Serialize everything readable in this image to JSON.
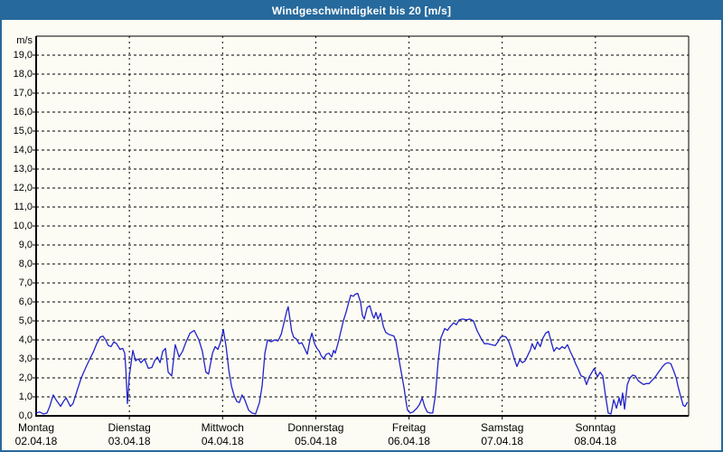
{
  "window": {
    "title": "Windgeschwindigkeit bis 20 [m/s]"
  },
  "colors": {
    "accent_blue": "#26699c",
    "background": "#fcfcf4",
    "series_line": "#2222cc",
    "grid": "#000000",
    "title_text": "#ffffff"
  },
  "chart_data": {
    "type": "line",
    "title": "Windgeschwindigkeit bis 20 [m/s]",
    "ylabel": "m/s",
    "unit_label": "m/s",
    "ylim": [
      0,
      20
    ],
    "y_tick_step": 1,
    "y_tick_labels": [
      "0,0",
      "1,0",
      "2,0",
      "3,0",
      "4,0",
      "5,0",
      "6,0",
      "7,0",
      "8,0",
      "9,0",
      "10,0",
      "11,0",
      "12,0",
      "13,0",
      "14,0",
      "15,0",
      "16,0",
      "17,0",
      "18,0",
      "19,0"
    ],
    "grid": "dashed",
    "x_total_hours": 168,
    "x_days": [
      {
        "name": "Montag",
        "date": "02.04.18"
      },
      {
        "name": "Dienstag",
        "date": "03.04.18"
      },
      {
        "name": "Mittwoch",
        "date": "04.04.18"
      },
      {
        "name": "Donnerstag",
        "date": "05.04.18"
      },
      {
        "name": "Freitag",
        "date": "06.04.18"
      },
      {
        "name": "Samstag",
        "date": "07.04.18"
      },
      {
        "name": "Sonntag",
        "date": "08.04.18"
      }
    ],
    "series": [
      {
        "name": "Windgeschwindigkeit",
        "color": "#2222cc",
        "points": [
          [
            0,
            0.15
          ],
          [
            0.9,
            0.2
          ],
          [
            1.9,
            0.1
          ],
          [
            2.8,
            0.15
          ],
          [
            3.5,
            0.5
          ],
          [
            4.4,
            1.1
          ],
          [
            5.1,
            0.85
          ],
          [
            6.3,
            0.5
          ],
          [
            7,
            0.75
          ],
          [
            7.7,
            0.95
          ],
          [
            8.8,
            0.5
          ],
          [
            9.5,
            0.65
          ],
          [
            10.5,
            1.3
          ],
          [
            11.6,
            2
          ],
          [
            12.8,
            2.55
          ],
          [
            13.7,
            2.95
          ],
          [
            14.7,
            3.35
          ],
          [
            15.6,
            3.8
          ],
          [
            16.5,
            4.15
          ],
          [
            17.2,
            4.2
          ],
          [
            17.9,
            4
          ],
          [
            18.6,
            3.7
          ],
          [
            19.3,
            3.65
          ],
          [
            20,
            3.9
          ],
          [
            20.7,
            3.8
          ],
          [
            21.6,
            3.5
          ],
          [
            22.3,
            3.55
          ],
          [
            22.8,
            3.3
          ],
          [
            23.1,
            2.4
          ],
          [
            23.5,
            0.65
          ],
          [
            24,
            2.1
          ],
          [
            24.9,
            3.45
          ],
          [
            25.6,
            2.9
          ],
          [
            26.3,
            3
          ],
          [
            27,
            2.8
          ],
          [
            27.9,
            3
          ],
          [
            28.9,
            2.5
          ],
          [
            29.8,
            2.55
          ],
          [
            30.5,
            2.9
          ],
          [
            31.2,
            3.1
          ],
          [
            31.9,
            2.8
          ],
          [
            32.6,
            3.4
          ],
          [
            33.3,
            3.55
          ],
          [
            34,
            2.3
          ],
          [
            34.9,
            2.1
          ],
          [
            35.8,
            3.75
          ],
          [
            36.8,
            3.1
          ],
          [
            37.7,
            3.4
          ],
          [
            38.6,
            3.9
          ],
          [
            39.6,
            4.35
          ],
          [
            40.7,
            4.5
          ],
          [
            41.9,
            4
          ],
          [
            42.8,
            3.4
          ],
          [
            43.7,
            2.3
          ],
          [
            44.4,
            2.2
          ],
          [
            45.4,
            3.3
          ],
          [
            46.1,
            3.65
          ],
          [
            46.8,
            3.5
          ],
          [
            47.5,
            3.9
          ],
          [
            48.2,
            4.55
          ],
          [
            48.9,
            3.65
          ],
          [
            49.6,
            2.4
          ],
          [
            50.3,
            1.55
          ],
          [
            51,
            1.05
          ],
          [
            51.7,
            0.75
          ],
          [
            52.3,
            0.7
          ],
          [
            53,
            1.1
          ],
          [
            53.7,
            0.85
          ],
          [
            54.7,
            0.3
          ],
          [
            55.6,
            0.15
          ],
          [
            56.5,
            0.1
          ],
          [
            57.5,
            0.7
          ],
          [
            58.2,
            1.6
          ],
          [
            58.9,
            3.3
          ],
          [
            59.6,
            4
          ],
          [
            60.5,
            3.9
          ],
          [
            61.4,
            4
          ],
          [
            62.3,
            3.95
          ],
          [
            63.1,
            4.3
          ],
          [
            63.8,
            4.9
          ],
          [
            64.5,
            5.5
          ],
          [
            64.9,
            5.75
          ],
          [
            65.4,
            5
          ],
          [
            65.8,
            4.45
          ],
          [
            66.3,
            4.15
          ],
          [
            67,
            4.05
          ],
          [
            67.7,
            3.8
          ],
          [
            68.4,
            3.85
          ],
          [
            69.1,
            3.55
          ],
          [
            69.8,
            3.25
          ],
          [
            70.5,
            4
          ],
          [
            71,
            4.35
          ],
          [
            71.7,
            3.8
          ],
          [
            72.3,
            3.55
          ],
          [
            72.9,
            3.4
          ],
          [
            73.3,
            3.2
          ],
          [
            74,
            3
          ],
          [
            74.7,
            3.25
          ],
          [
            75.4,
            3.3
          ],
          [
            76.1,
            3.1
          ],
          [
            76.6,
            3.45
          ],
          [
            77,
            3.3
          ],
          [
            77.7,
            3.8
          ],
          [
            78.4,
            4.4
          ],
          [
            79.1,
            5
          ],
          [
            79.8,
            5.45
          ],
          [
            80.5,
            6
          ],
          [
            81,
            6.35
          ],
          [
            81.7,
            6.3
          ],
          [
            82.1,
            6.4
          ],
          [
            82.8,
            6.45
          ],
          [
            83.5,
            6
          ],
          [
            84,
            5.3
          ],
          [
            84.5,
            5.1
          ],
          [
            85.2,
            5.7
          ],
          [
            85.9,
            5.8
          ],
          [
            86.6,
            5.3
          ],
          [
            87,
            5.15
          ],
          [
            87.5,
            5.45
          ],
          [
            88,
            5.1
          ],
          [
            88.7,
            5.4
          ],
          [
            89.4,
            4.7
          ],
          [
            90,
            4.4
          ],
          [
            90.7,
            4.3
          ],
          [
            91.4,
            4.25
          ],
          [
            92.1,
            4.2
          ],
          [
            92.6,
            3.95
          ],
          [
            93.3,
            3.1
          ],
          [
            94,
            2.3
          ],
          [
            94.7,
            1.5
          ],
          [
            95.2,
            0.8
          ],
          [
            95.6,
            0.3
          ],
          [
            96.3,
            0.15
          ],
          [
            97,
            0.2
          ],
          [
            98,
            0.4
          ],
          [
            98.7,
            0.6
          ],
          [
            99.4,
            0.95
          ],
          [
            100,
            0.5
          ],
          [
            100.7,
            0.2
          ],
          [
            101.4,
            0.15
          ],
          [
            102.1,
            0.15
          ],
          [
            102.8,
            1.1
          ],
          [
            103.5,
            2.85
          ],
          [
            104.2,
            4.1
          ],
          [
            105.2,
            4.6
          ],
          [
            105.9,
            4.5
          ],
          [
            106.6,
            4.7
          ],
          [
            107.5,
            4.9
          ],
          [
            108.2,
            4.8
          ],
          [
            108.9,
            5.05
          ],
          [
            109.8,
            5.1
          ],
          [
            110.8,
            5.05
          ],
          [
            111.7,
            5.1
          ],
          [
            112.6,
            5
          ],
          [
            113.5,
            4.5
          ],
          [
            114.5,
            4.1
          ],
          [
            115.4,
            3.8
          ],
          [
            116.3,
            3.8
          ],
          [
            117.2,
            3.75
          ],
          [
            118.2,
            3.7
          ],
          [
            118.9,
            3.9
          ],
          [
            119.6,
            4.15
          ],
          [
            120.3,
            4.2
          ],
          [
            121,
            4.15
          ],
          [
            121.7,
            3.9
          ],
          [
            122.4,
            3.5
          ],
          [
            123.1,
            3
          ],
          [
            123.8,
            2.6
          ],
          [
            124.5,
            2.95
          ],
          [
            125.2,
            2.8
          ],
          [
            125.9,
            2.9
          ],
          [
            126.6,
            3.2
          ],
          [
            127.3,
            3.5
          ],
          [
            127.7,
            3.8
          ],
          [
            128.4,
            3.5
          ],
          [
            129.1,
            3.9
          ],
          [
            129.8,
            3.65
          ],
          [
            130.5,
            4.1
          ],
          [
            131.2,
            4.35
          ],
          [
            131.9,
            4.45
          ],
          [
            132.6,
            3.9
          ],
          [
            133.3,
            3.4
          ],
          [
            134,
            3.6
          ],
          [
            134.7,
            3.5
          ],
          [
            135.4,
            3.65
          ],
          [
            136.1,
            3.55
          ],
          [
            136.8,
            3.75
          ],
          [
            137.5,
            3.4
          ],
          [
            138.2,
            3.1
          ],
          [
            138.9,
            2.75
          ],
          [
            139.6,
            2.45
          ],
          [
            140.3,
            2.1
          ],
          [
            141,
            2.05
          ],
          [
            141.7,
            1.65
          ],
          [
            142.4,
            2.05
          ],
          [
            143.1,
            2.3
          ],
          [
            143.7,
            2.5
          ],
          [
            144.5,
            2.05
          ],
          [
            145.2,
            2.3
          ],
          [
            145.9,
            2.1
          ],
          [
            146.6,
            1.05
          ],
          [
            147.3,
            0.15
          ],
          [
            148,
            0.1
          ],
          [
            148.7,
            0.85
          ],
          [
            149.4,
            0.4
          ],
          [
            150.1,
            0.95
          ],
          [
            150.5,
            0.55
          ],
          [
            151,
            1.2
          ],
          [
            151.5,
            0.35
          ],
          [
            152.2,
            1.65
          ],
          [
            152.9,
            2
          ],
          [
            153.6,
            2.15
          ],
          [
            154.3,
            2.1
          ],
          [
            155,
            1.85
          ],
          [
            155.7,
            1.75
          ],
          [
            156.4,
            1.65
          ],
          [
            157.1,
            1.7
          ],
          [
            157.8,
            1.7
          ],
          [
            158.5,
            1.85
          ],
          [
            159.2,
            2
          ],
          [
            159.9,
            2.2
          ],
          [
            160.6,
            2.4
          ],
          [
            161.3,
            2.6
          ],
          [
            162,
            2.75
          ],
          [
            162.7,
            2.8
          ],
          [
            163.4,
            2.75
          ],
          [
            164.1,
            2.4
          ],
          [
            164.8,
            2
          ],
          [
            165.2,
            1.6
          ],
          [
            165.9,
            1.05
          ],
          [
            166.6,
            0.55
          ],
          [
            167.1,
            0.5
          ],
          [
            167.6,
            0.7
          ]
        ]
      }
    ]
  }
}
